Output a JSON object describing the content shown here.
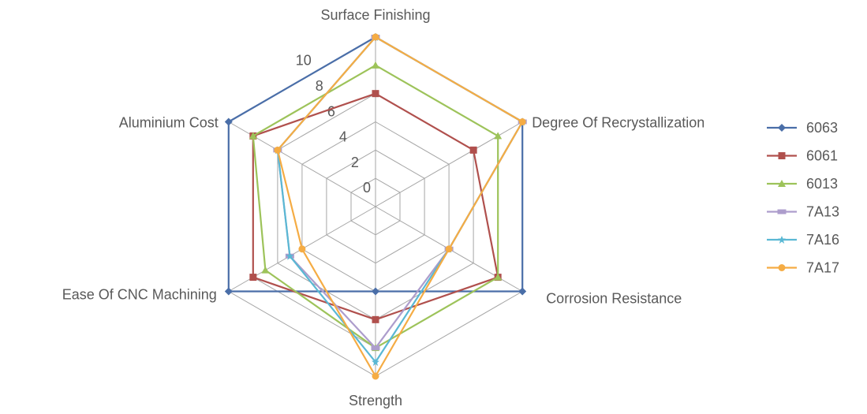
{
  "chart_data": {
    "type": "radar",
    "axes": [
      "Surface Finishing",
      "Degree Of Recrystallization",
      "Corrosion Resistance",
      "Strength",
      "Ease Of CNC Machining",
      "Aluminium Cost"
    ],
    "rmin": 0,
    "rmax": 12,
    "ticks": [
      "0",
      "2",
      "4",
      "6",
      "8",
      "10"
    ],
    "series": [
      {
        "name": "6063",
        "color": "#4a6ea8",
        "marker": "diamond",
        "values": [
          12,
          12,
          12,
          6,
          12,
          12
        ]
      },
      {
        "name": "6061",
        "color": "#b0504d",
        "marker": "square",
        "values": [
          8,
          8,
          10,
          8,
          10,
          10
        ]
      },
      {
        "name": "6013",
        "color": "#9dc35a",
        "marker": "triangle",
        "values": [
          10,
          10,
          10,
          10,
          9,
          10
        ]
      },
      {
        "name": "7A13",
        "color": "#ad9dcc",
        "marker": "bar",
        "values": [
          12,
          12,
          6,
          10,
          7,
          8
        ]
      },
      {
        "name": "7A16",
        "color": "#5ab8d4",
        "marker": "star",
        "values": [
          12,
          12,
          6,
          11,
          7,
          8
        ]
      },
      {
        "name": "7A17",
        "color": "#f5ac44",
        "marker": "circle",
        "values": [
          12,
          12,
          6,
          12,
          6,
          8
        ]
      }
    ],
    "legend_position": "right",
    "grid": true
  }
}
